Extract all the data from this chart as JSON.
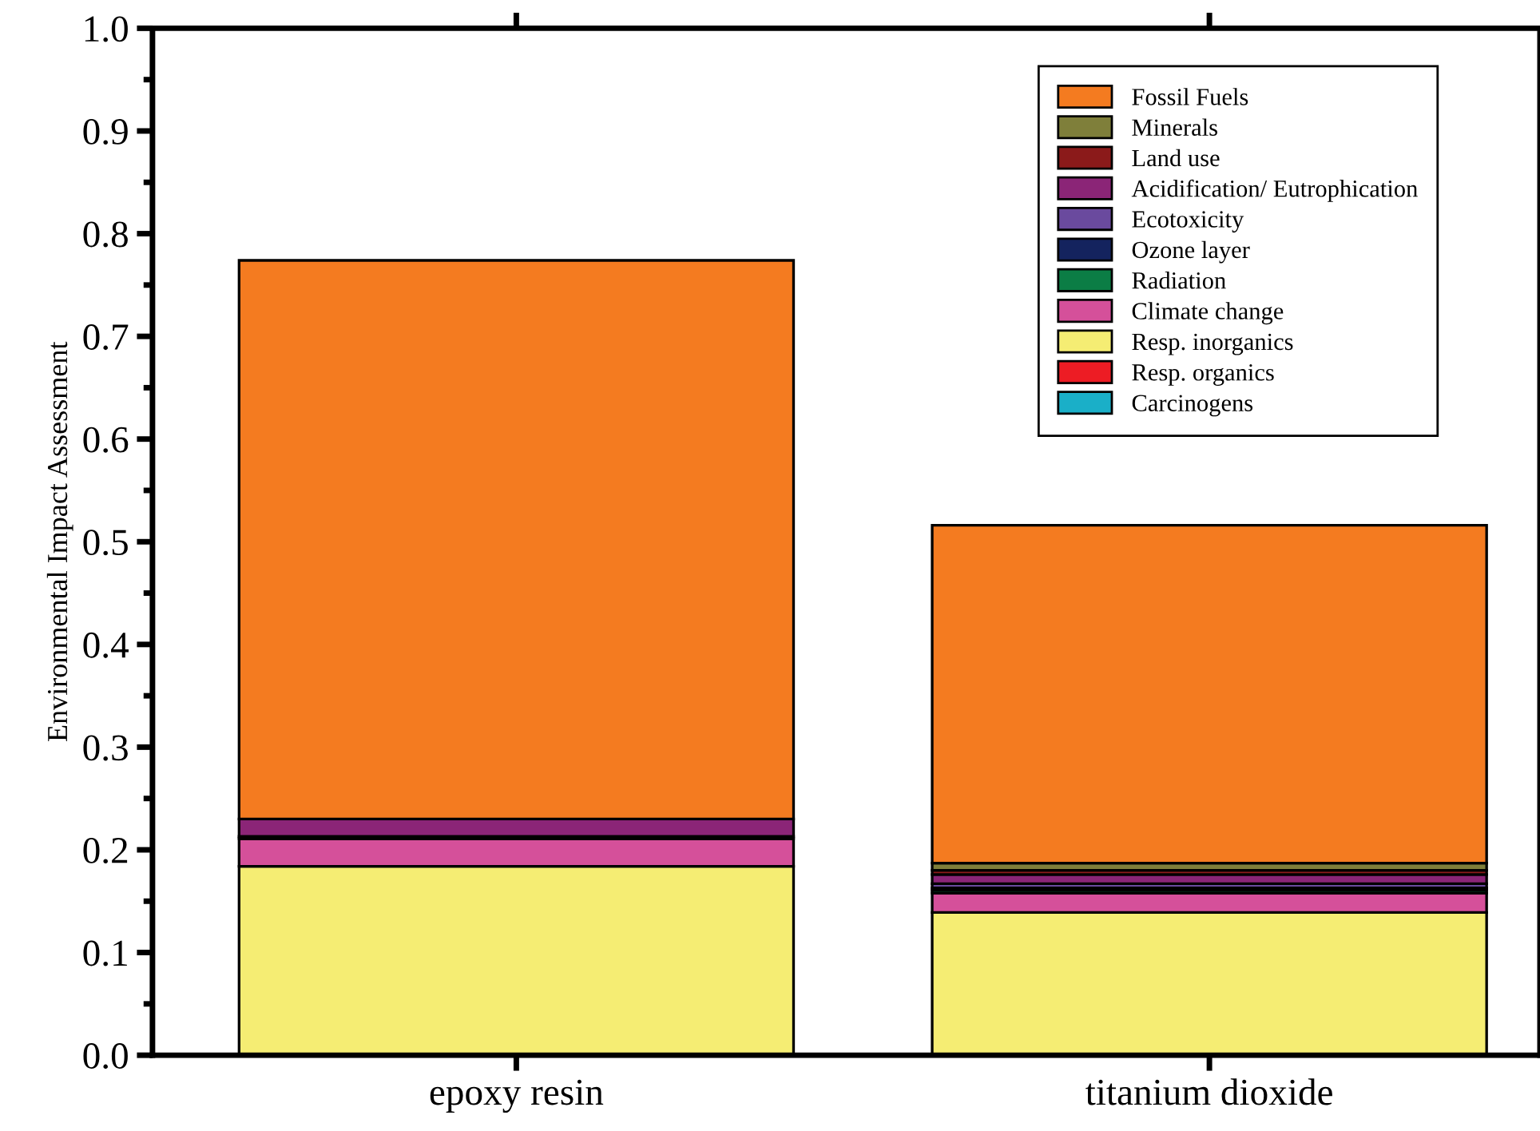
{
  "chart_data": {
    "type": "bar",
    "stacked": true,
    "ylabel": "Environmental Impact Assessment",
    "categories": [
      "epoxy resin",
      "titanium dioxide"
    ],
    "series": [
      {
        "name": "Carcinogens",
        "color": "#1aafc8",
        "values": [
          null,
          0.001
        ]
      },
      {
        "name": "Resp. organics",
        "color": "#ed1c24",
        "values": [
          0,
          0
        ]
      },
      {
        "name": "Resp. inorganics",
        "color": "#f5ed73",
        "values": [
          0.184,
          0.138
        ]
      },
      {
        "name": "Climate change",
        "color": "#d5509a",
        "values": [
          0.027,
          0.019
        ]
      },
      {
        "name": "Radiation",
        "color": "#0b7d45",
        "values": [
          0,
          0.003
        ]
      },
      {
        "name": "Ozone layer",
        "color": "#14235e",
        "values": [
          0,
          0.002
        ]
      },
      {
        "name": "Ecotoxicity",
        "color": "#6a4a9e",
        "values": [
          0.002,
          0.004
        ]
      },
      {
        "name": "Acidification/ Eutrophication",
        "color": "#8b2577",
        "values": [
          0.017,
          0.009
        ]
      },
      {
        "name": "Land use",
        "color": "#8b1a1a",
        "values": [
          0,
          0.004
        ]
      },
      {
        "name": "Minerals",
        "color": "#7f7f3a",
        "values": [
          0,
          0.007
        ]
      },
      {
        "name": "Fossil Fuels",
        "color": "#f47b20",
        "values": [
          0.544,
          0.329
        ]
      }
    ],
    "ylim": [
      0,
      1.0
    ],
    "yticks": [
      {
        "value": 0,
        "label": "0.0"
      },
      0.1,
      0.2,
      0.3,
      0.4,
      0.5,
      0.6,
      0.7,
      0.8,
      0.9,
      {
        "value": 1.0,
        "label": "1.0"
      }
    ],
    "legend": "top right",
    "grid": false
  }
}
